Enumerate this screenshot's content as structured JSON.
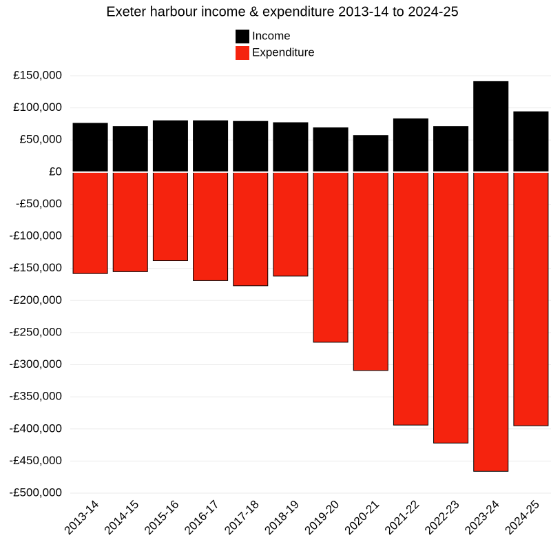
{
  "chart_data": {
    "type": "bar",
    "title": "Exeter harbour income & expenditure 2013-14 to 2024-25",
    "categories": [
      "2013-14",
      "2014-15",
      "2015-16",
      "2016-17",
      "2017-18",
      "2018-19",
      "2019-20",
      "2020-21",
      "2021-22",
      "2022-23",
      "2023-24",
      "2024-25"
    ],
    "series": [
      {
        "name": "Income",
        "color": "#000000",
        "values": [
          76000,
          71000,
          80000,
          80000,
          79000,
          77000,
          69000,
          57000,
          83000,
          71000,
          141000,
          94000
        ]
      },
      {
        "name": "Expenditure",
        "color": "#f5230e",
        "values": [
          -158000,
          -155000,
          -138000,
          -169000,
          -177000,
          -162000,
          -265000,
          -309000,
          -394000,
          -422000,
          -466000,
          -395000
        ]
      }
    ],
    "ylim": [
      -500000,
      150000
    ],
    "yticks": [
      {
        "value": 150000,
        "label": "£150,000"
      },
      {
        "value": 100000,
        "label": "£100,000"
      },
      {
        "value": 50000,
        "label": "£50,000"
      },
      {
        "value": 0,
        "label": "£0"
      },
      {
        "value": -50000,
        "label": "-£50,000"
      },
      {
        "value": -100000,
        "label": "-£100,000"
      },
      {
        "value": -150000,
        "label": "-£150,000"
      },
      {
        "value": -200000,
        "label": "-£200,000"
      },
      {
        "value": -250000,
        "label": "-£250,000"
      },
      {
        "value": -300000,
        "label": "-£300,000"
      },
      {
        "value": -350000,
        "label": "-£350,000"
      },
      {
        "value": -400000,
        "label": "-£400,000"
      },
      {
        "value": -450000,
        "label": "-£450,000"
      },
      {
        "value": -500000,
        "label": "-£500,000"
      }
    ],
    "grid": true
  }
}
